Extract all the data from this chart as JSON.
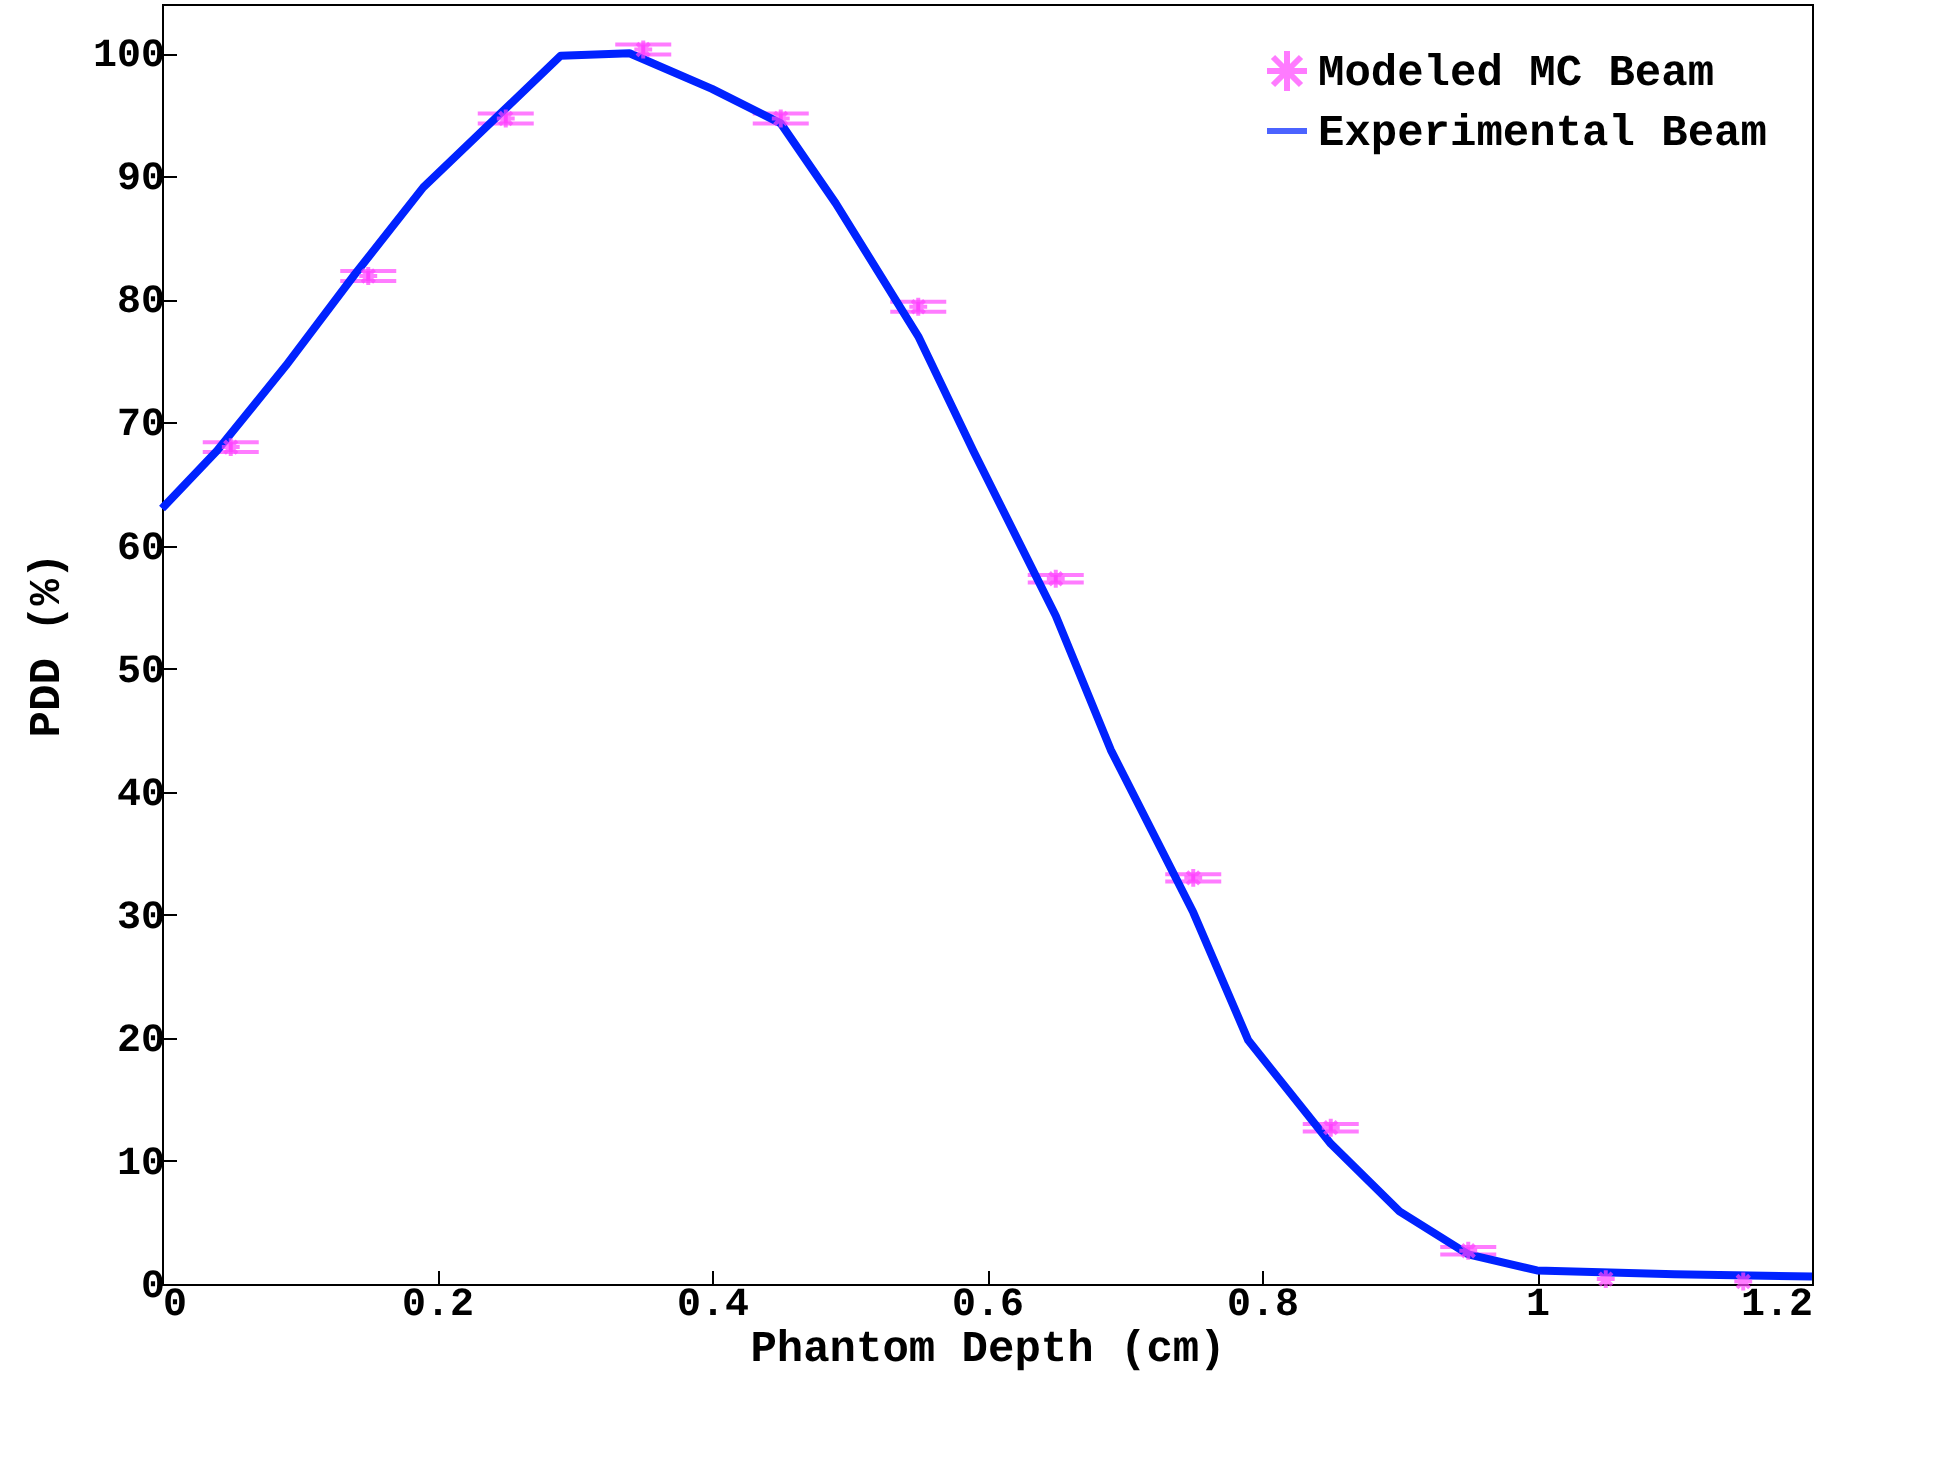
{
  "chart_data": {
    "type": "line",
    "xlabel": "Phantom Depth (cm)",
    "ylabel": "PDD (%)",
    "xlim": [
      0,
      1.2
    ],
    "xticks": [
      0,
      0.2,
      0.4,
      0.6,
      0.8,
      1,
      1.2
    ],
    "ylim": [
      0,
      104
    ],
    "yticks": [
      0,
      10,
      20,
      30,
      40,
      50,
      60,
      70,
      80,
      90,
      100
    ],
    "grid": false,
    "legend": "top right",
    "series": [
      {
        "name": "Modeled MC Beam",
        "type": "scatter",
        "marker": "cross",
        "color": "#ff44ff",
        "x": [
          0.05,
          0.15,
          0.25,
          0.35,
          0.45,
          0.55,
          0.65,
          0.75,
          0.85,
          0.95,
          1.05,
          1.15
        ],
        "values": [
          68.0,
          81.9,
          94.7,
          100.3,
          94.7,
          79.4,
          57.3,
          33.0,
          12.7,
          2.7,
          0.4,
          0.2
        ],
        "errors": [
          0.4,
          0.4,
          0.4,
          0.4,
          0.4,
          0.4,
          0.3,
          0.3,
          0.3,
          0.3,
          null,
          null
        ]
      },
      {
        "name": "Experimental Beam",
        "type": "line",
        "line_style": "solid",
        "color": "#0022ff",
        "x": [
          0,
          0.04,
          0.09,
          0.14,
          0.19,
          0.29,
          0.34,
          0.4,
          0.45,
          0.49,
          0.55,
          0.59,
          0.65,
          0.69,
          0.75,
          0.79,
          0.85,
          0.9,
          0.95,
          1.0,
          1.1,
          1.2
        ],
        "values": [
          63.0,
          67.7,
          74.6,
          82.0,
          89.1,
          99.8,
          100,
          97.1,
          94.3,
          87.8,
          77.0,
          67.7,
          54.3,
          43.4,
          30.2,
          19.8,
          11.4,
          5.9,
          2.4,
          1.1,
          0.8,
          0.6
        ]
      }
    ]
  }
}
